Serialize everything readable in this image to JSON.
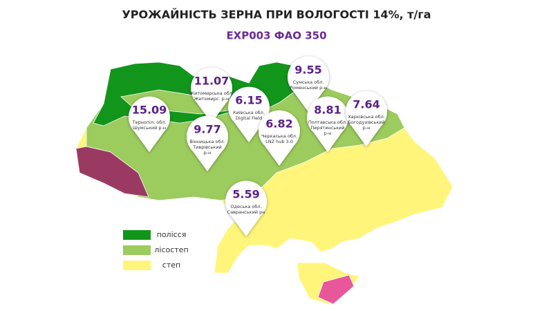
{
  "title": "УРОЖАЙНІСТЬ ЗЕРНА ПРИ ВОЛОГОСТІ 14%, т/га",
  "subtitle": "EXP003 ФАО 350",
  "pins": [
    {
      "value": 11.07,
      "lines": [
        "Житомирська обл.",
        "Житомирс. р-н"
      ]
    },
    {
      "value": 15.09,
      "lines": [
        "Тернопіл. обл.",
        "Шумський р-н"
      ]
    },
    {
      "value": 6.15,
      "lines": [
        "Київська обл.",
        "Digital Field"
      ]
    },
    {
      "value": 9.77,
      "lines": [
        "Вінницька обл.",
        "Тиврівський",
        "р-н"
      ]
    },
    {
      "value": 6.82,
      "lines": [
        "Черкаська обл.",
        "LNZ hub 3.0"
      ]
    },
    {
      "value": 9.55,
      "lines": [
        "Сумська обл.",
        "Роменський р-н"
      ]
    },
    {
      "value": 8.81,
      "lines": [
        "Полтавська обл.",
        "Пирятинський",
        "р-н"
      ]
    },
    {
      "value": 7.64,
      "lines": [
        "Харківська обл.",
        "Богодухівський",
        "р-н"
      ]
    },
    {
      "value": 5.59,
      "lines": [
        "Одеська обл.",
        "Савранський рн"
      ]
    }
  ],
  "legend": [
    {
      "label": "полісся",
      "color": "#12951b"
    },
    {
      "label": "лісостеп",
      "color": "#9ccb5e"
    },
    {
      "label": "степ",
      "color": "#fff57a"
    }
  ]
}
